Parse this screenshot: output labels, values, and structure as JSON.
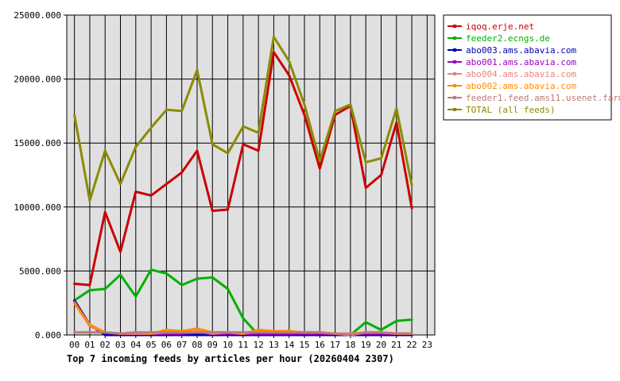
{
  "chart_data": {
    "type": "line",
    "title": "Top 7 incoming feeds by articles per hour (20260404 2307)",
    "x": [
      "00",
      "01",
      "02",
      "03",
      "04",
      "05",
      "06",
      "07",
      "08",
      "09",
      "10",
      "11",
      "12",
      "13",
      "14",
      "15",
      "16",
      "17",
      "18",
      "19",
      "20",
      "21",
      "22",
      "23"
    ],
    "y_ticks": [
      "0.000",
      "5000.000",
      "10000.000",
      "15000.000",
      "20000.000",
      "25000.000"
    ],
    "ylim": [
      0,
      25000
    ],
    "grid": true,
    "legend_position": "top-right",
    "series": [
      {
        "name": "iqoq.erje.net",
        "color": "#cc0000",
        "values": [
          4000,
          3900,
          9600,
          6500,
          11200,
          10900,
          11800,
          12700,
          14400,
          9700,
          9800,
          14900,
          14400,
          22100,
          20300,
          17200,
          13000,
          17200,
          17900,
          11500,
          12500,
          16600,
          9900,
          null
        ]
      },
      {
        "name": "feeder2.ecngs.de",
        "color": "#00b000",
        "values": [
          2700,
          3500,
          3600,
          4700,
          3000,
          5100,
          4800,
          3900,
          4400,
          4500,
          3600,
          1300,
          0,
          0,
          0,
          0,
          0,
          0,
          0,
          1000,
          400,
          1100,
          1200,
          null
        ]
      },
      {
        "name": "abo003.ams.abavia.com",
        "color": "#0000b0",
        "values": [
          2700,
          800,
          0,
          0,
          0,
          0,
          0,
          0,
          0,
          0,
          0,
          0,
          0,
          0,
          0,
          0,
          0,
          0,
          0,
          0,
          0,
          0,
          0,
          null
        ]
      },
      {
        "name": "abo001.ams.abavia.com",
        "color": "#a000c0",
        "values": [
          2600,
          700,
          200,
          100,
          100,
          100,
          100,
          100,
          200,
          100,
          100,
          100,
          100,
          100,
          100,
          100,
          100,
          100,
          100,
          100,
          100,
          100,
          100,
          null
        ]
      },
      {
        "name": "abo004.ams.abavia.com",
        "color": "#f08080",
        "values": [
          2500,
          700,
          200,
          100,
          100,
          100,
          200,
          200,
          300,
          100,
          200,
          100,
          300,
          300,
          300,
          200,
          200,
          100,
          100,
          200,
          200,
          100,
          100,
          null
        ]
      },
      {
        "name": "abo002.ams.abavia.com",
        "color": "#ff8c00",
        "values": [
          2500,
          800,
          200,
          100,
          200,
          100,
          400,
          300,
          500,
          200,
          200,
          100,
          400,
          300,
          300,
          200,
          200,
          100,
          0,
          200,
          200,
          100,
          100,
          null
        ]
      },
      {
        "name": "feeder1.feed.ams11.usenet.farm",
        "color": "#c07878",
        "values": [
          200,
          200,
          200,
          100,
          200,
          200,
          200,
          200,
          200,
          200,
          200,
          200,
          200,
          200,
          200,
          200,
          200,
          100,
          0,
          200,
          200,
          100,
          100,
          null
        ]
      },
      {
        "name": "TOTAL (all feeds)",
        "color": "#8b8b00",
        "values": [
          17200,
          10500,
          14400,
          11800,
          14700,
          16200,
          17600,
          17500,
          20700,
          14900,
          14200,
          16300,
          15800,
          23300,
          21400,
          18000,
          13600,
          17500,
          18000,
          13500,
          13800,
          17700,
          11700,
          null
        ]
      }
    ]
  }
}
